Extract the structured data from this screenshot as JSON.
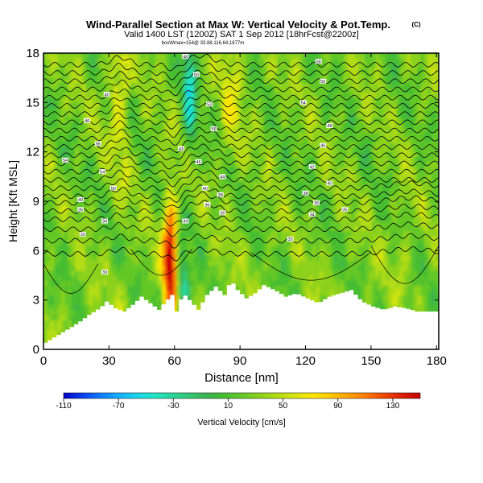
{
  "chart_data": {
    "type": "heatmap",
    "title": "Wind-Parallel Section at Max W: Vertical Velocity & Pot.Temp.",
    "title_mark": "(C)",
    "subtitle": "Valid 1400 LST (1200Z) SAT 1 Sep 2012 [18hrFcst@2200z]",
    "sub_subtitle": "boxWmax=154@ 33.88,116.64,1877m",
    "xlabel": "Distance [nm]",
    "ylabel": "Height [Kft MSL]",
    "xlim": [
      0,
      181
    ],
    "ylim": [
      0,
      18
    ],
    "x_ticks": [
      0,
      30,
      60,
      90,
      120,
      150,
      180
    ],
    "y_ticks": [
      0,
      3,
      6,
      9,
      12,
      15,
      18
    ],
    "colorbar": {
      "label": "Vertical Velocity [cm/s]",
      "range": [
        -110,
        150
      ],
      "tick_values": [
        -110,
        -70,
        -30,
        10,
        50,
        90,
        130
      ],
      "tick_labels": [
        "-110",
        "-70",
        "-30",
        "10",
        "50",
        "90",
        "130"
      ],
      "colors": [
        "#0000c8",
        "#0a3cf0",
        "#0f78ff",
        "#14aaff",
        "#19d2f0",
        "#1ee6c8",
        "#28d7a0",
        "#32c878",
        "#3cb450",
        "#46be32",
        "#64c828",
        "#8cd21e",
        "#b4dc14",
        "#dce60f",
        "#ffe600",
        "#ffc800",
        "#ffa000",
        "#ff7800",
        "#f04600",
        "#dc1e00",
        "#c80000"
      ]
    },
    "terrain": {
      "distance": [
        0,
        5,
        10,
        15,
        20,
        25,
        28,
        32,
        36,
        40,
        44,
        48,
        52,
        55,
        58,
        60,
        63,
        66,
        70,
        74,
        78,
        82,
        85,
        88,
        92,
        96,
        100,
        105,
        110,
        115,
        120,
        125,
        130,
        135,
        140,
        145,
        150,
        155,
        160,
        165,
        170,
        175,
        181
      ],
      "height": [
        0.4,
        0.8,
        1.2,
        1.6,
        2.1,
        2.5,
        2.9,
        2.5,
        2.3,
        2.7,
        3.2,
        2.8,
        2.4,
        2.9,
        3.3,
        2.3,
        3.4,
        3.0,
        2.4,
        3.3,
        3.8,
        3.3,
        4.2,
        3.6,
        3.1,
        3.4,
        3.9,
        3.6,
        3.2,
        3.4,
        3.1,
        2.8,
        3.2,
        3.4,
        3.6,
        2.9,
        2.6,
        2.4,
        2.6,
        2.5,
        2.3,
        2.3,
        2.3
      ]
    },
    "updrafts": [
      {
        "distance": 58,
        "height_range": [
          3.5,
          7.5
        ],
        "value": 150
      },
      {
        "distance": 33,
        "height_range": [
          14,
          18
        ],
        "value": 60
      },
      {
        "distance": 88,
        "height_range": [
          14,
          18
        ],
        "value": 50
      },
      {
        "distance": 165,
        "height_range": [
          5,
          8
        ],
        "value": 40
      }
    ],
    "downdrafts": [
      {
        "distance": 67,
        "height_range": [
          14,
          18
        ],
        "value": -40
      },
      {
        "distance": 64,
        "height_range": [
          3,
          5
        ],
        "value": -35
      }
    ],
    "theta_contour_heights": [
      5.8,
      6.6,
      7.3,
      7.9,
      8.4,
      8.9,
      9.3,
      9.8,
      10.3,
      10.8,
      11.3,
      11.8,
      12.3,
      12.8,
      13.3,
      13.8,
      14.3,
      14.8,
      15.3,
      15.8,
      16.3,
      16.8,
      17.3
    ],
    "contour_labels": [
      {
        "text": "54",
        "distance": 10,
        "height": 11.5
      },
      {
        "text": "56",
        "distance": 25,
        "height": 12.5
      },
      {
        "text": "40",
        "distance": 29,
        "height": 15.5
      },
      {
        "text": "46",
        "distance": 20,
        "height": 13.9
      },
      {
        "text": "54",
        "distance": 27,
        "height": 10.8
      },
      {
        "text": "50",
        "distance": 32,
        "height": 9.8
      },
      {
        "text": "40",
        "distance": 17,
        "height": 9.1
      },
      {
        "text": "35",
        "distance": 17,
        "height": 8.5
      },
      {
        "text": "34",
        "distance": 28,
        "height": 7.8
      },
      {
        "text": "33",
        "distance": 18,
        "height": 7.0
      },
      {
        "text": "39",
        "distance": 28,
        "height": 4.7
      },
      {
        "text": "48",
        "distance": 65,
        "height": 17.8
      },
      {
        "text": "50",
        "distance": 70,
        "height": 16.7
      },
      {
        "text": "53",
        "distance": 76,
        "height": 14.9
      },
      {
        "text": "56",
        "distance": 78,
        "height": 13.4
      },
      {
        "text": "43",
        "distance": 63,
        "height": 12.2
      },
      {
        "text": "46",
        "distance": 71,
        "height": 11.4
      },
      {
        "text": "44",
        "distance": 82,
        "height": 10.5
      },
      {
        "text": "40",
        "distance": 74,
        "height": 9.8
      },
      {
        "text": "38",
        "distance": 81,
        "height": 9.4
      },
      {
        "text": "36",
        "distance": 75,
        "height": 8.8
      },
      {
        "text": "35",
        "distance": 82,
        "height": 8.3
      },
      {
        "text": "34",
        "distance": 65,
        "height": 7.8
      },
      {
        "text": "58",
        "distance": 126,
        "height": 17.5
      },
      {
        "text": "56",
        "distance": 128,
        "height": 16.3
      },
      {
        "text": "54",
        "distance": 119,
        "height": 15.0
      },
      {
        "text": "48",
        "distance": 131,
        "height": 13.6
      },
      {
        "text": "46",
        "distance": 128,
        "height": 12.4
      },
      {
        "text": "42",
        "distance": 123,
        "height": 11.1
      },
      {
        "text": "40",
        "distance": 131,
        "height": 10.1
      },
      {
        "text": "38",
        "distance": 120,
        "height": 9.5
      },
      {
        "text": "36",
        "distance": 125,
        "height": 8.9
      },
      {
        "text": "35",
        "distance": 138,
        "height": 8.5
      },
      {
        "text": "34",
        "distance": 123,
        "height": 8.2
      },
      {
        "text": "33",
        "distance": 113,
        "height": 6.7
      }
    ]
  }
}
